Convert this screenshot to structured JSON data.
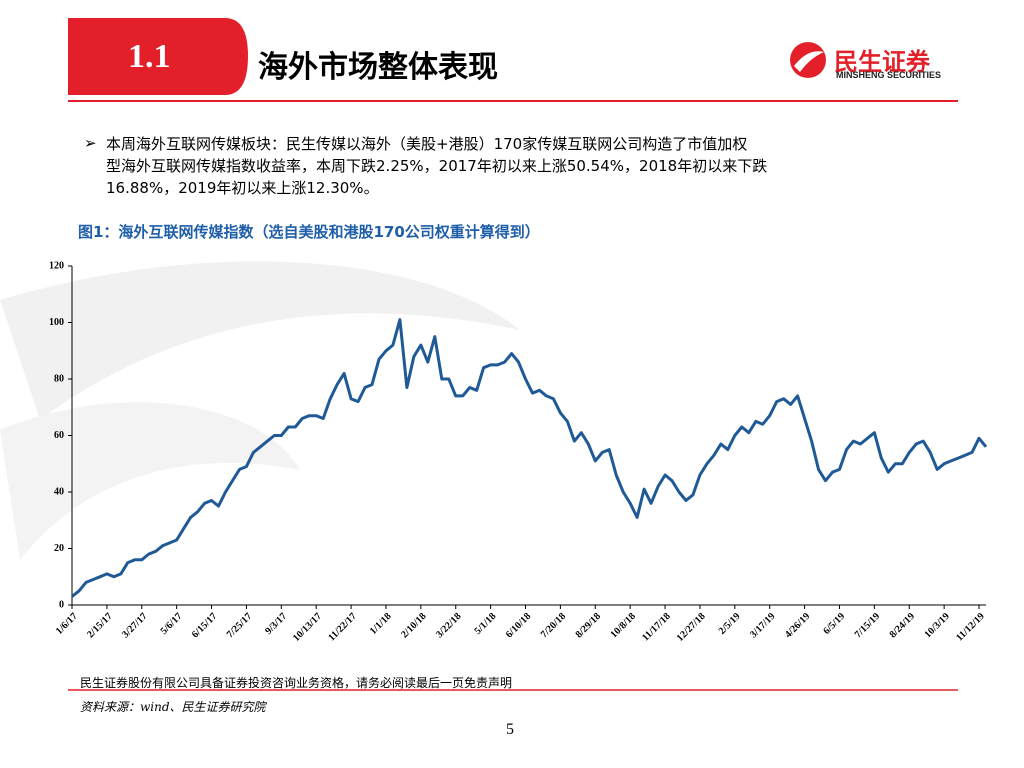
{
  "header": {
    "number": "1.1",
    "title": "海外市场整体表现",
    "logo_cn": "民生证券",
    "logo_en": "MINSHENG SECURITIES"
  },
  "bullet": [
    "本周海外互联网传媒板块：民生传媒以海外（美股+港股）170家传媒互联网公司构造了市值加权",
    "型海外互联网传媒指数收益率，本周下跌2.25%，2017年初以来上涨50.54%，2018年初以来下跌",
    "16.88%，2019年初以来上涨12.30%。"
  ],
  "chart_data": {
    "type": "line",
    "title": "图1：海外互联网传媒指数（选自美股和港股170公司权重计算得到）",
    "categories": [
      "1/6/17",
      null,
      null,
      null,
      null,
      "2/15/17",
      null,
      null,
      null,
      null,
      "3/27/17",
      null,
      null,
      null,
      null,
      "5/6/17",
      null,
      null,
      null,
      null,
      "6/15/17",
      null,
      null,
      null,
      null,
      "7/25/17",
      null,
      null,
      null,
      null,
      "9/3/17",
      null,
      null,
      null,
      null,
      "10/13/17",
      null,
      null,
      null,
      null,
      "11/22/17",
      null,
      null,
      null,
      null,
      "1/1/18",
      null,
      null,
      null,
      null,
      "2/10/18",
      null,
      null,
      null,
      null,
      "3/22/18",
      null,
      null,
      null,
      null,
      "5/1/18",
      null,
      null,
      null,
      null,
      "6/10/18",
      null,
      null,
      null,
      null,
      "7/20/18",
      null,
      null,
      null,
      null,
      "8/29/18",
      null,
      null,
      null,
      null,
      "10/8/18",
      null,
      null,
      null,
      null,
      "11/17/18",
      null,
      null,
      null,
      null,
      "12/27/18",
      null,
      null,
      null,
      null,
      "2/5/19",
      null,
      null,
      null,
      null,
      "3/17/19",
      null,
      null,
      null,
      null,
      "4/26/19",
      null,
      null,
      null,
      null,
      "6/5/19",
      null,
      null,
      null,
      null,
      "7/15/19",
      null,
      null,
      null,
      null,
      "8/24/19",
      null,
      null,
      null,
      null,
      "10/3/19",
      null,
      null,
      null,
      null,
      "11/12/19",
      null
    ],
    "values": [
      3,
      5,
      8,
      9,
      10,
      11,
      10,
      11,
      15,
      16,
      16,
      18,
      19,
      21,
      22,
      23,
      27,
      31,
      33,
      36,
      37,
      35,
      40,
      44,
      48,
      49,
      54,
      56,
      58,
      60,
      60,
      63,
      63,
      66,
      67,
      67,
      66,
      73,
      78,
      82,
      73,
      72,
      77,
      78,
      87,
      90,
      92,
      101,
      77,
      88,
      92,
      86,
      95,
      80,
      80,
      74,
      74,
      77,
      76,
      84,
      85,
      85,
      86,
      89,
      86,
      80,
      75,
      76,
      74,
      73,
      68,
      65,
      58,
      61,
      57,
      51,
      54,
      55,
      46,
      40,
      36,
      31,
      41,
      36,
      42,
      46,
      44,
      40,
      37,
      39,
      46,
      50,
      53,
      57,
      55,
      60,
      63,
      61,
      65,
      64,
      67,
      72,
      73,
      71,
      74,
      66,
      58,
      48,
      44,
      47,
      48,
      55,
      58,
      57,
      59,
      61,
      52,
      47,
      50,
      50,
      54,
      57,
      58,
      54,
      48,
      50,
      51,
      52,
      53,
      54,
      59,
      56
    ],
    "color": "#1f5a96",
    "ylim": [
      0,
      120
    ],
    "yticks": [
      0,
      20,
      40,
      60,
      80,
      100,
      120
    ]
  },
  "footer": {
    "disclaimer": "民生证券股份有限公司具备证券投资咨询业务资格，请务必阅读最后一页免责声明",
    "source": "资料来源：wind、民生证券研究院",
    "page": "5"
  }
}
